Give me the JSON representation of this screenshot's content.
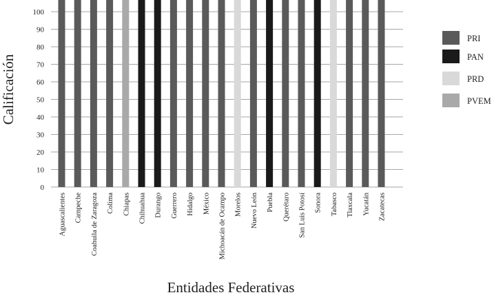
{
  "chart_data": {
    "type": "bar",
    "title": "",
    "xlabel": "Entidades Federativas",
    "ylabel": "Calificación",
    "ylim": [
      0,
      100
    ],
    "yticks": [
      0,
      10,
      20,
      30,
      40,
      50,
      60,
      70,
      80,
      90,
      100
    ],
    "grid": "horizontal",
    "legend_position": "right",
    "categories": [
      "Aguascalientes",
      "Campeche",
      "Coahuila de Zaragoza",
      "Colima",
      "Chiapas",
      "Chihuahua",
      "Durango",
      "Guerrero",
      "Hidalgo",
      "México",
      "Michoacán de Ocampo",
      "Morelos",
      "Nuevo León",
      "Puebla",
      "Querétaro",
      "San Luis Potosí",
      "Sonora",
      "Tabasco",
      "Tlaxcala",
      "Yucatán",
      "Zacatecas"
    ],
    "values": [
      100,
      100,
      100,
      100,
      100,
      100,
      100,
      100,
      100,
      100,
      100,
      100,
      100,
      100,
      100,
      100,
      100,
      100,
      100,
      100,
      100
    ],
    "party": [
      "PRI",
      "PRI",
      "PRI",
      "PRI",
      "PVEM",
      "PAN",
      "PAN",
      "PRI",
      "PRI",
      "PRI",
      "PRI",
      "PRD",
      "PRI",
      "PAN",
      "PRI",
      "PRI",
      "PAN",
      "PRD",
      "PRI",
      "PRI",
      "PRI"
    ],
    "legend": [
      {
        "name": "PRI",
        "color": "#5a5a5a"
      },
      {
        "name": "PAN",
        "color": "#1a1a1a"
      },
      {
        "name": "PRD",
        "color": "#d9d9d9"
      },
      {
        "name": "PVEM",
        "color": "#a9a9a9"
      }
    ]
  }
}
